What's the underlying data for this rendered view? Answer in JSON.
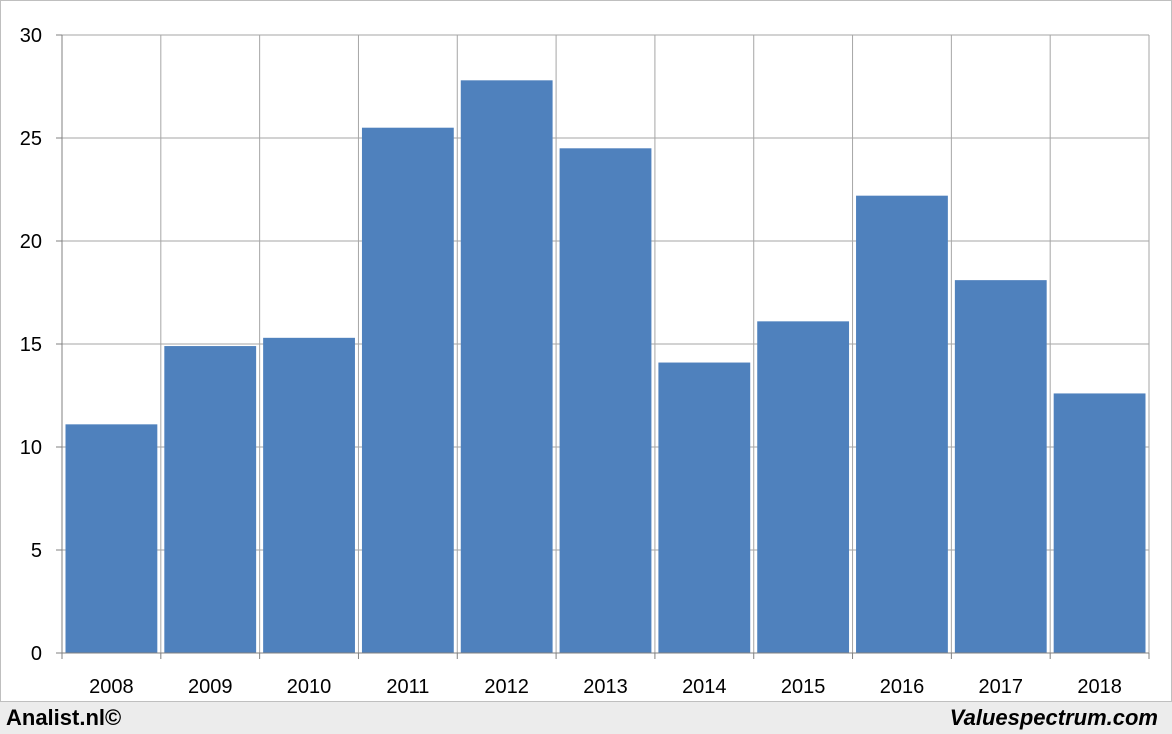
{
  "chart_data": {
    "type": "bar",
    "categories": [
      "2008",
      "2009",
      "2010",
      "2011",
      "2012",
      "2013",
      "2014",
      "2015",
      "2016",
      "2017",
      "2018"
    ],
    "values": [
      11.1,
      14.9,
      15.3,
      25.5,
      27.8,
      24.5,
      14.1,
      16.1,
      22.2,
      18.1,
      12.6
    ],
    "ylim": [
      0,
      30
    ],
    "yticks": [
      0,
      5,
      10,
      15,
      20,
      25,
      30
    ],
    "grid": true,
    "bar_color": "#4f81bd",
    "gridline_color": "#a6a6a6"
  },
  "footer": {
    "left": "Analist.nl©",
    "right": "Valuespectrum.com"
  }
}
